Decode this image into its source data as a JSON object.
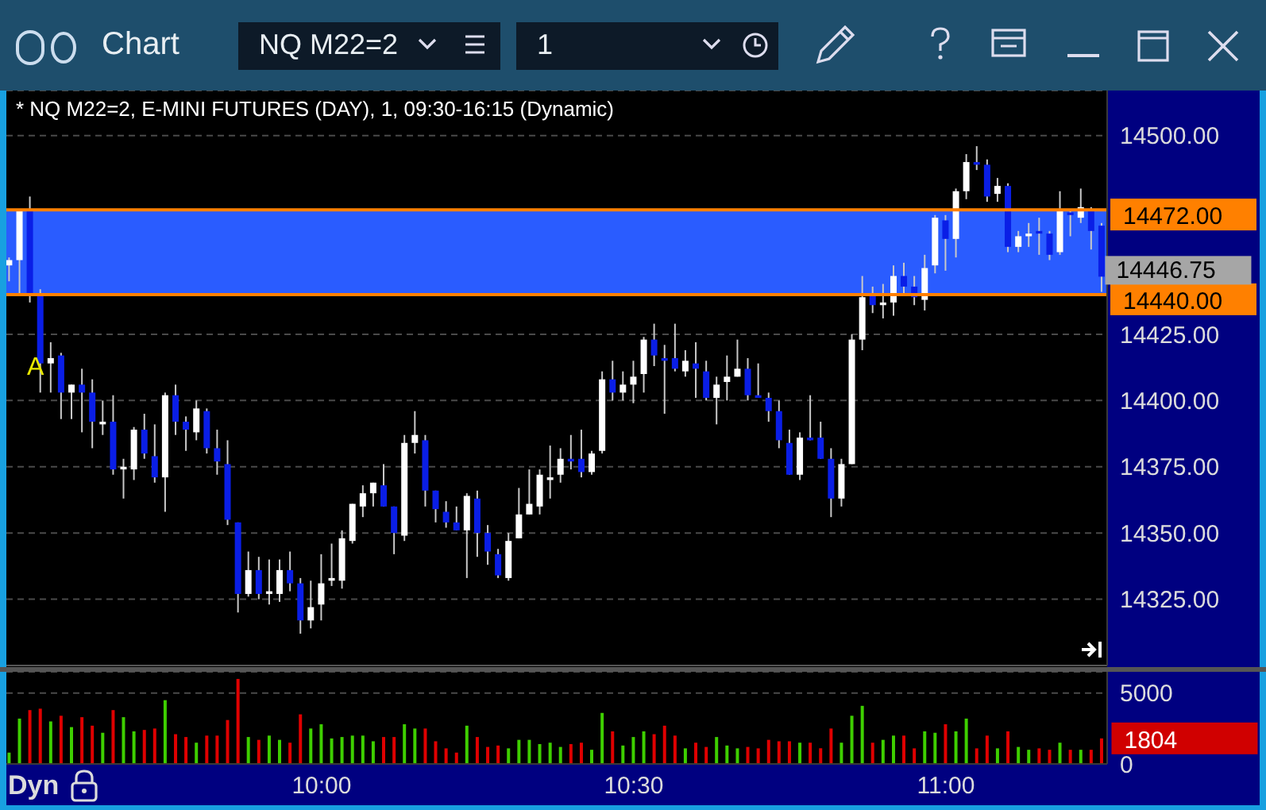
{
  "chart_data": [
    {
      "type": "candlestick",
      "title": "* NQ M22=2, E-MINI FUTURES (DAY), 1, 09:30-16:15 (Dynamic)",
      "x": [
        9.5,
        9.5167,
        9.5333,
        9.55,
        9.5667,
        9.5833,
        9.6,
        9.6167,
        9.6333,
        9.65,
        9.6667,
        9.6833,
        9.7,
        9.7167,
        9.7333,
        9.75,
        9.7667,
        9.7833,
        9.8,
        9.8167,
        9.8333,
        9.85,
        9.8667,
        9.8833,
        9.9,
        9.9167,
        9.9333,
        9.95,
        9.9667,
        9.9833,
        10,
        10.0167,
        10.0333,
        10.05,
        10.0667,
        10.0833,
        10.1,
        10.1167,
        10.1333,
        10.15,
        10.1667,
        10.1833,
        10.2,
        10.2167,
        10.2333,
        10.25,
        10.2667,
        10.2833,
        10.3,
        10.3167,
        10.3333,
        10.35,
        10.3667,
        10.3833,
        10.4,
        10.4167,
        10.4333,
        10.45,
        10.4667,
        10.4833,
        10.5,
        10.5167,
        10.5333,
        10.55,
        10.5667,
        10.5833,
        10.6,
        10.6167,
        10.6333,
        10.65,
        10.6667,
        10.6833,
        10.7,
        10.7167,
        10.7333,
        10.75,
        10.7667,
        10.7833,
        10.8,
        10.8167,
        10.8333,
        10.85,
        10.8667,
        10.8833,
        10.9,
        10.9167,
        10.9333,
        10.95,
        10.9667,
        10.9833,
        11,
        11.0167,
        11.0333,
        11.05,
        11.0667,
        11.0833,
        11.1,
        11.1167,
        11.1333,
        11.15,
        11.1667,
        11.1833,
        11.2,
        11.2167,
        11.2333,
        11.25
      ],
      "ohlc": [
        [
          14451,
          14454,
          14445,
          14453
        ],
        [
          14453,
          14472,
          14440,
          14472
        ],
        [
          14472,
          14477,
          14437,
          14440
        ],
        [
          14440,
          14442,
          14403,
          14414
        ],
        [
          14414,
          14422,
          14403,
          14416
        ],
        [
          14417,
          14418,
          14393,
          14403
        ],
        [
          14403,
          14406,
          14393,
          14406
        ],
        [
          14406,
          14412,
          14388,
          14403
        ],
        [
          14403,
          14408,
          14382,
          14392
        ],
        [
          14391,
          14400,
          14387,
          14392
        ],
        [
          14392,
          14402,
          14372,
          14374
        ],
        [
          14374,
          14378,
          14363,
          14375
        ],
        [
          14374,
          14390,
          14370,
          14389
        ],
        [
          14389,
          14395,
          14378,
          14380
        ],
        [
          14379,
          14391,
          14369,
          14371
        ],
        [
          14371,
          14403,
          14358,
          14402
        ],
        [
          14402,
          14406,
          14387,
          14392
        ],
        [
          14392,
          14394,
          14381,
          14389
        ],
        [
          14388,
          14400,
          14385,
          14397
        ],
        [
          14396,
          14397,
          14380,
          14382
        ],
        [
          14382,
          14389,
          14372,
          14377
        ],
        [
          14376,
          14385,
          14353,
          14355
        ],
        [
          14354,
          14354,
          14320,
          14327
        ],
        [
          14327,
          14343,
          14326,
          14336
        ],
        [
          14336,
          14341,
          14325,
          14327
        ],
        [
          14327,
          14340,
          14323,
          14328
        ],
        [
          14327,
          14340,
          14324,
          14336
        ],
        [
          14336,
          14343,
          14328,
          14331
        ],
        [
          14331,
          14333,
          14312,
          14317
        ],
        [
          14317,
          14332,
          14314,
          14322
        ],
        [
          14323,
          14342,
          14317,
          14331
        ],
        [
          14332,
          14346,
          14330,
          14333
        ],
        [
          14332,
          14351,
          14329,
          14348
        ],
        [
          14347,
          14361,
          14346,
          14361
        ],
        [
          14360,
          14368,
          14356,
          14365
        ],
        [
          14365,
          14369,
          14360,
          14369
        ],
        [
          14368,
          14376,
          14360,
          14360
        ],
        [
          14360,
          14360,
          14342,
          14350
        ],
        [
          14349,
          14387,
          14347,
          14384
        ],
        [
          14384,
          14396,
          14380,
          14387
        ],
        [
          14385,
          14387,
          14360,
          14366
        ],
        [
          14366,
          14366,
          14354,
          14359
        ],
        [
          14358,
          14362,
          14352,
          14354
        ],
        [
          14354,
          14360,
          14351,
          14351
        ],
        [
          14351,
          14365,
          14333,
          14364
        ],
        [
          14363,
          14366,
          14341,
          14350
        ],
        [
          14350,
          14353,
          14338,
          14343
        ],
        [
          14342,
          14344,
          14333,
          14334
        ],
        [
          14333,
          14350,
          14332,
          14347
        ],
        [
          14348,
          14367,
          14348,
          14357
        ],
        [
          14357,
          14374,
          14357,
          14361
        ],
        [
          14360,
          14374,
          14357,
          14372
        ],
        [
          14370,
          14383,
          14363,
          14371
        ],
        [
          14372,
          14382,
          14369,
          14378
        ],
        [
          14378,
          14387,
          14374,
          14377
        ],
        [
          14378,
          14389,
          14371,
          14373
        ],
        [
          14373,
          14381,
          14372,
          14380
        ],
        [
          14381,
          14411,
          14380,
          14408
        ],
        [
          14408,
          14415,
          14400,
          14403
        ],
        [
          14403,
          14411,
          14400,
          14406
        ],
        [
          14406,
          14415,
          14399,
          14409
        ],
        [
          14410,
          14424,
          14403,
          14423
        ],
        [
          14423,
          14429,
          14413,
          14417
        ],
        [
          14416,
          14421,
          14395,
          14415
        ],
        [
          14416,
          14429,
          14411,
          14412
        ],
        [
          14411,
          14419,
          14409,
          14415
        ],
        [
          14414,
          14422,
          14401,
          14412
        ],
        [
          14411,
          14415,
          14400,
          14401
        ],
        [
          14401,
          14409,
          14391,
          14406
        ],
        [
          14407,
          14417,
          14400,
          14409
        ],
        [
          14409,
          14423,
          14409,
          14412
        ],
        [
          14412,
          14416,
          14400,
          14402
        ],
        [
          14402,
          14414,
          14401,
          14401
        ],
        [
          14401,
          14403,
          14392,
          14396
        ],
        [
          14396,
          14400,
          14382,
          14385
        ],
        [
          14384,
          14389,
          14372,
          14372
        ],
        [
          14372,
          14388,
          14370,
          14386
        ],
        [
          14386,
          14402,
          14385,
          14385
        ],
        [
          14386,
          14392,
          14378,
          14378
        ],
        [
          14378,
          14382,
          14356,
          14363
        ],
        [
          14363,
          14378,
          14360,
          14376
        ],
        [
          14376,
          14425,
          14376,
          14423
        ],
        [
          14423,
          14447,
          14419,
          14439
        ],
        [
          14440,
          14443,
          14433,
          14436
        ],
        [
          14436,
          14444,
          14431,
          14437
        ],
        [
          14437,
          14451,
          14432,
          14447
        ],
        [
          14447,
          14452,
          14440,
          14443
        ],
        [
          14443,
          14447,
          14436,
          14439
        ],
        [
          14438,
          14455,
          14434,
          14450
        ],
        [
          14451,
          14470,
          14448,
          14469
        ],
        [
          14468,
          14470,
          14449,
          14461
        ],
        [
          14461,
          14480,
          14454,
          14479
        ],
        [
          14479,
          14493,
          14476,
          14490
        ],
        [
          14490,
          14496,
          14487,
          14489
        ],
        [
          14489,
          14491,
          14475,
          14477
        ],
        [
          14478,
          14484,
          14475,
          14481
        ],
        [
          14481,
          14482,
          14456,
          14458
        ],
        [
          14458,
          14464,
          14456,
          14462
        ],
        [
          14462,
          14467,
          14458,
          14463
        ],
        [
          14464,
          14469,
          14455,
          14463
        ],
        [
          14463,
          14464,
          14453,
          14455
        ],
        [
          14456,
          14479,
          14455,
          14472
        ],
        [
          14471,
          14472,
          14462,
          14470
        ],
        [
          14469,
          14480,
          14467,
          14473
        ],
        [
          14472,
          14473,
          14457,
          14464
        ],
        [
          14466,
          14467,
          14441,
          14446.75
        ]
      ],
      "xlim": [
        9.495,
        11.2583
      ],
      "ylim": [
        14300,
        14517
      ],
      "yticks": [
        {
          "value": 14325,
          "label": "14325.00"
        },
        {
          "value": 14350,
          "label": "14350.00"
        },
        {
          "value": 14375,
          "label": "14375.00"
        },
        {
          "value": 14400,
          "label": "14400.00"
        },
        {
          "value": 14425,
          "label": "14425.00"
        },
        {
          "value": 14500,
          "label": "14500.00"
        }
      ],
      "grid": "y",
      "tick_labels": "y",
      "bands": [
        {
          "axis": "y",
          "from": 14440,
          "to": 14472,
          "color": "#2a5cff"
        }
      ],
      "ref_lines": [
        {
          "axis": "y",
          "value": 14472,
          "label": "14472.00",
          "color": "#ff8000"
        },
        {
          "axis": "y",
          "value": 14440,
          "label": "14440.00",
          "color": "#ff8000"
        }
      ],
      "annotations": [
        "Chart",
        "NQ M22=2",
        "1",
        "Dyn",
        "A",
        "14446.75"
      ]
    },
    {
      "type": "bar",
      "x": [
        9.5,
        9.5167,
        9.5333,
        9.55,
        9.5667,
        9.5833,
        9.6,
        9.6167,
        9.6333,
        9.65,
        9.6667,
        9.6833,
        9.7,
        9.7167,
        9.7333,
        9.75,
        9.7667,
        9.7833,
        9.8,
        9.8167,
        9.8333,
        9.85,
        9.8667,
        9.8833,
        9.9,
        9.9167,
        9.9333,
        9.95,
        9.9667,
        9.9833,
        10,
        10.0167,
        10.0333,
        10.05,
        10.0667,
        10.0833,
        10.1,
        10.1167,
        10.1333,
        10.15,
        10.1667,
        10.1833,
        10.2,
        10.2167,
        10.2333,
        10.25,
        10.2667,
        10.2833,
        10.3,
        10.3167,
        10.3333,
        10.35,
        10.3667,
        10.3833,
        10.4,
        10.4167,
        10.4333,
        10.45,
        10.4667,
        10.4833,
        10.5,
        10.5167,
        10.5333,
        10.55,
        10.5667,
        10.5833,
        10.6,
        10.6167,
        10.6333,
        10.65,
        10.6667,
        10.6833,
        10.7,
        10.7167,
        10.7333,
        10.75,
        10.7667,
        10.7833,
        10.8,
        10.8167,
        10.8333,
        10.85,
        10.8667,
        10.8833,
        10.9,
        10.9167,
        10.9333,
        10.95,
        10.9667,
        10.9833,
        11,
        11.0167,
        11.0333,
        11.05,
        11.0667,
        11.0833,
        11.1,
        11.1167,
        11.1333,
        11.15,
        11.1667,
        11.1833,
        11.2,
        11.2167,
        11.2333,
        11.25
      ],
      "values": [
        800,
        3200,
        3800,
        3900,
        3000,
        3400,
        2600,
        3300,
        2700,
        2200,
        3800,
        3300,
        2300,
        2400,
        2500,
        4500,
        2100,
        1900,
        1500,
        2000,
        2000,
        3100,
        6000,
        1900,
        1700,
        2000,
        1700,
        1500,
        3500,
        2500,
        2800,
        1800,
        1900,
        2000,
        2000,
        1600,
        1900,
        1900,
        2800,
        2500,
        2500,
        1600,
        1100,
        800,
        2700,
        1900,
        1200,
        1300,
        1100,
        1700,
        1700,
        1400,
        1500,
        1200,
        1400,
        1500,
        1000,
        3600,
        2300,
        1300,
        1900,
        2300,
        2100,
        2700,
        2000,
        1100,
        1500,
        1200,
        1900,
        1300,
        1100,
        1200,
        1100,
        1700,
        1600,
        1600,
        1500,
        1500,
        1100,
        2500,
        1500,
        3400,
        4100,
        1500,
        1700,
        2000,
        2000,
        1100,
        2300,
        2200,
        2800,
        2300,
        3200,
        1100,
        2000,
        1100,
        2300,
        1200,
        1000,
        1100,
        1000,
        1500,
        1000,
        1000,
        1000,
        1804
      ],
      "colors": [
        "#3ecf00",
        "#3ecf00",
        "#e00000",
        "#e00000",
        "#3ecf00",
        "#e00000",
        "#3ecf00",
        "#e00000",
        "#e00000",
        "#3ecf00",
        "#e00000",
        "#3ecf00",
        "#3ecf00",
        "#e00000",
        "#e00000",
        "#3ecf00",
        "#e00000",
        "#e00000",
        "#3ecf00",
        "#e00000",
        "#e00000",
        "#e00000",
        "#e00000",
        "#3ecf00",
        "#e00000",
        "#3ecf00",
        "#3ecf00",
        "#e00000",
        "#e00000",
        "#3ecf00",
        "#3ecf00",
        "#3ecf00",
        "#3ecf00",
        "#3ecf00",
        "#3ecf00",
        "#3ecf00",
        "#e00000",
        "#e00000",
        "#3ecf00",
        "#3ecf00",
        "#e00000",
        "#e00000",
        "#e00000",
        "#e00000",
        "#3ecf00",
        "#e00000",
        "#e00000",
        "#e00000",
        "#3ecf00",
        "#3ecf00",
        "#3ecf00",
        "#3ecf00",
        "#3ecf00",
        "#3ecf00",
        "#e00000",
        "#e00000",
        "#3ecf00",
        "#3ecf00",
        "#e00000",
        "#3ecf00",
        "#3ecf00",
        "#3ecf00",
        "#e00000",
        "#e00000",
        "#e00000",
        "#3ecf00",
        "#e00000",
        "#e00000",
        "#3ecf00",
        "#3ecf00",
        "#3ecf00",
        "#e00000",
        "#e00000",
        "#e00000",
        "#e00000",
        "#e00000",
        "#3ecf00",
        "#e00000",
        "#e00000",
        "#e00000",
        "#3ecf00",
        "#3ecf00",
        "#3ecf00",
        "#e00000",
        "#3ecf00",
        "#3ecf00",
        "#e00000",
        "#e00000",
        "#3ecf00",
        "#3ecf00",
        "#e00000",
        "#3ecf00",
        "#3ecf00",
        "#e00000",
        "#e00000",
        "#3ecf00",
        "#e00000",
        "#3ecf00",
        "#3ecf00",
        "#e00000",
        "#e00000",
        "#3ecf00",
        "#e00000",
        "#3ecf00",
        "#e00000",
        "#e00000"
      ],
      "annotations": [
        {
          "text": "1804",
          "x": 11.25,
          "y": 1804
        }
      ],
      "xlim": [
        9.495,
        11.2583
      ],
      "xticks": [
        {
          "value": 10,
          "label": "10:00"
        },
        {
          "value": 10.5,
          "label": "10:30"
        },
        {
          "value": 11,
          "label": "11:00"
        }
      ],
      "ylim": [
        0,
        6500
      ],
      "yticks": [
        0,
        5000
      ],
      "grid": "y"
    }
  ]
}
